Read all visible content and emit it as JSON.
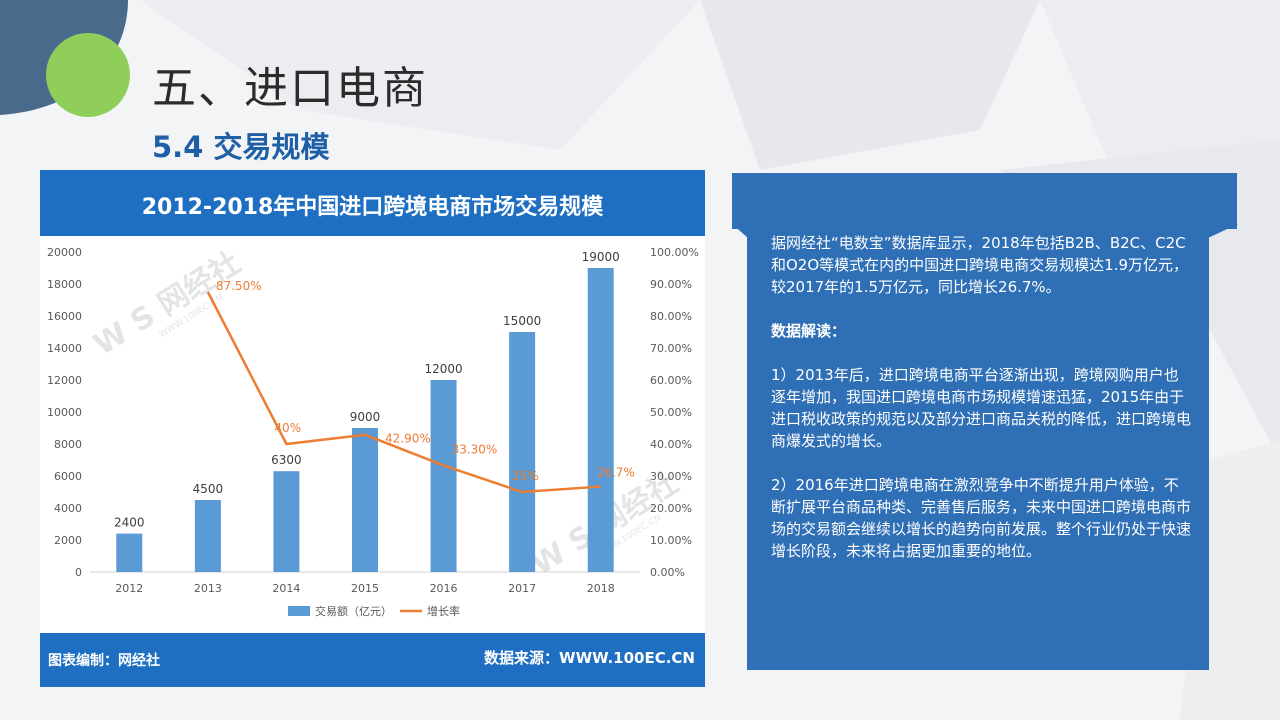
{
  "slide": {
    "title": "五、进口电商",
    "subtitle": "5.4 交易规模"
  },
  "chart_header": {
    "title": "2012-2018年中国进口跨境电商市场交易规模"
  },
  "chart_footer": {
    "left": "图表编制：网经社",
    "right": "数据来源：WWW.100EC.CN"
  },
  "watermark": {
    "text": "网经社",
    "sub": "WWW.100EC.CN"
  },
  "chart_data": {
    "type": "bar",
    "categories": [
      "2012",
      "2013",
      "2014",
      "2015",
      "2016",
      "2017",
      "2018"
    ],
    "series": [
      {
        "name": "交易额（亿元）",
        "type": "bar",
        "axis": "left",
        "values": [
          2400,
          4500,
          6300,
          9000,
          12000,
          15000,
          19000
        ],
        "labels": [
          "2400",
          "4500",
          "6300",
          "9000",
          "12000",
          "15000",
          "19000"
        ]
      },
      {
        "name": "增长率",
        "type": "line",
        "axis": "right",
        "values": [
          null,
          87.5,
          40,
          42.9,
          33.3,
          25,
          26.7
        ],
        "labels": [
          "",
          "87.50%",
          "40%",
          "42.90%",
          "33.30%",
          "25%",
          "26.7%"
        ]
      }
    ],
    "ylim_left": [
      0,
      20000
    ],
    "yticks_left": [
      "0",
      "2000",
      "4000",
      "6000",
      "8000",
      "10000",
      "12000",
      "14000",
      "16000",
      "18000",
      "20000"
    ],
    "ylim_right": [
      0,
      100
    ],
    "yticks_right": [
      "0.00%",
      "10.00%",
      "20.00%",
      "30.00%",
      "40.00%",
      "50.00%",
      "60.00%",
      "70.00%",
      "80.00%",
      "90.00%",
      "100.00%"
    ],
    "grid": false,
    "legend_position": "bottom",
    "colors": {
      "bar": "#5b9bd5",
      "line": "#ed7d31"
    }
  },
  "panel": {
    "paragraph1": "据网经社“电数宝”数据库显示，2018年包括B2B、B2C、C2C和O2O等模式在内的中国进口跨境电商交易规模达1.9万亿元，较2017年的1.5万亿元，同比增长26.7%。",
    "heading": "数据解读：",
    "point1": "1）2013年后，进口跨境电商平台逐渐出现，跨境网购用户也逐年增加，我国进口跨境电商市场规模增速迅猛，2015年由于进口税收政策的规范以及部分进口商品关税的降低，进口跨境电商爆发式的增长。",
    "point2": "2）2016年进口跨境电商在激烈竞争中不断提升用户体验，不断扩展平台商品种类、完善售后服务，未来中国进口跨境电商市场的交易额会继续以增长的趋势向前发展。整个行业仍处于快速增长阶段，未来将占据更加重要的地位。"
  },
  "theme": {
    "accent_blue": "#2f6fb5",
    "header_blue": "#1e6fc1",
    "deco_navy": "#4a6a8c",
    "deco_green": "#8fce5a"
  }
}
